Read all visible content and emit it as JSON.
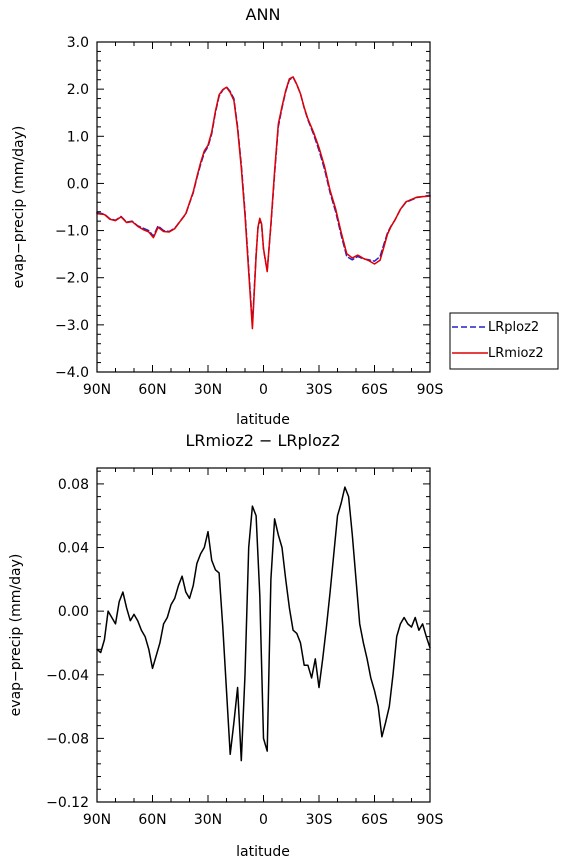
{
  "chart_data": [
    {
      "type": "line",
      "title": "ANN",
      "xlabel": "latitude",
      "ylabel": "evap−precip (mm/day)",
      "x_ticks": [
        {
          "value": 90,
          "label": "90N"
        },
        {
          "value": 60,
          "label": "60N"
        },
        {
          "value": 30,
          "label": "30N"
        },
        {
          "value": 0,
          "label": "0"
        },
        {
          "value": -30,
          "label": "30S"
        },
        {
          "value": -60,
          "label": "60S"
        },
        {
          "value": -90,
          "label": "90S"
        }
      ],
      "xlim": [
        90,
        -90
      ],
      "ylim": [
        -4.0,
        3.0
      ],
      "y_ticks": [
        {
          "value": 3.0,
          "label": "3.0"
        },
        {
          "value": 2.0,
          "label": "2.0"
        },
        {
          "value": 1.0,
          "label": "1.0"
        },
        {
          "value": 0.0,
          "label": "0.0"
        },
        {
          "value": -1.0,
          "label": "−1.0"
        },
        {
          "value": -2.0,
          "label": "−2.0"
        },
        {
          "value": -3.0,
          "label": "−3.0"
        },
        {
          "value": -4.0,
          "label": "−4.0"
        }
      ],
      "legend_position": "right",
      "series": [
        {
          "name": "LRploz2",
          "color": "#2222cc",
          "dash": "dashed",
          "x": [
            90,
            86,
            83,
            80,
            77,
            74,
            71,
            68,
            65,
            62,
            59.5,
            57,
            54,
            51,
            48,
            45,
            42,
            40,
            38,
            36,
            34,
            32,
            30,
            28,
            26,
            24,
            22,
            20,
            18,
            16,
            14,
            12,
            10,
            8,
            6,
            4,
            3,
            2,
            1,
            0,
            -2,
            -4,
            -6,
            -8,
            -10,
            -12,
            -14,
            -16,
            -18,
            -20,
            -22,
            -24,
            -27,
            -30,
            -33,
            -36,
            -39,
            -42,
            -45,
            -48,
            -51,
            -54,
            -57,
            -60,
            -63,
            -65,
            -67,
            -69,
            -71,
            -74,
            -77,
            -80,
            -83,
            -86,
            -90
          ],
          "y": [
            -0.62,
            -0.65,
            -0.75,
            -0.78,
            -0.7,
            -0.82,
            -0.8,
            -0.9,
            -0.95,
            -1.0,
            -1.12,
            -0.9,
            -1.0,
            -1.02,
            -0.95,
            -0.8,
            -0.65,
            -0.42,
            -0.2,
            0.12,
            0.4,
            0.65,
            0.78,
            1.05,
            1.5,
            1.85,
            1.98,
            2.05,
            1.95,
            1.8,
            1.2,
            0.4,
            -0.6,
            -1.8,
            -3.0,
            -1.5,
            -0.95,
            -0.78,
            -0.9,
            -1.4,
            -1.85,
            -0.9,
            0.2,
            1.2,
            1.6,
            1.95,
            2.2,
            2.25,
            2.1,
            1.9,
            1.6,
            1.35,
            1.05,
            0.7,
            0.3,
            -0.2,
            -0.6,
            -1.1,
            -1.55,
            -1.62,
            -1.55,
            -1.6,
            -1.62,
            -1.65,
            -1.55,
            -1.3,
            -1.05,
            -0.9,
            -0.78,
            -0.55,
            -0.4,
            -0.35,
            -0.3,
            -0.28,
            -0.25
          ]
        },
        {
          "name": "LRmioz2",
          "color": "#e00000",
          "dash": "solid",
          "x": [
            90,
            86,
            83,
            80,
            77,
            74,
            71,
            68,
            65,
            62,
            59.5,
            57,
            54,
            51,
            48,
            45,
            42,
            40,
            38,
            36,
            34,
            32,
            30,
            28,
            26,
            24,
            22,
            20,
            18,
            16,
            14,
            12,
            10,
            8,
            6,
            4,
            3,
            2,
            1,
            0,
            -2,
            -4,
            -6,
            -8,
            -10,
            -12,
            -14,
            -16,
            -18,
            -20,
            -22,
            -24,
            -27,
            -30,
            -33,
            -36,
            -39,
            -42,
            -45,
            -48,
            -51,
            -54,
            -57,
            -60,
            -63,
            -65,
            -67,
            -69,
            -71,
            -74,
            -77,
            -80,
            -83,
            -86,
            -90
          ],
          "y": [
            -0.64,
            -0.66,
            -0.76,
            -0.79,
            -0.71,
            -0.83,
            -0.81,
            -0.91,
            -0.98,
            -1.03,
            -1.15,
            -0.93,
            -1.02,
            -1.03,
            -0.96,
            -0.8,
            -0.64,
            -0.41,
            -0.18,
            0.14,
            0.44,
            0.69,
            0.81,
            1.09,
            1.53,
            1.88,
            1.99,
            2.04,
            1.93,
            1.76,
            1.15,
            0.33,
            -0.68,
            -1.88,
            -3.08,
            -1.55,
            -0.93,
            -0.74,
            -0.86,
            -1.38,
            -1.87,
            -0.86,
            0.26,
            1.26,
            1.63,
            1.97,
            2.22,
            2.26,
            2.1,
            1.9,
            1.61,
            1.37,
            1.09,
            0.76,
            0.36,
            -0.15,
            -0.54,
            -1.04,
            -1.49,
            -1.58,
            -1.52,
            -1.59,
            -1.64,
            -1.71,
            -1.63,
            -1.36,
            -1.08,
            -0.91,
            -0.78,
            -0.55,
            -0.39,
            -0.34,
            -0.29,
            -0.28,
            -0.27
          ]
        }
      ]
    },
    {
      "type": "line",
      "title": "LRmioz2 − LRploz2",
      "xlabel": "latitude",
      "ylabel": "evap−precip (mm/day)",
      "x_ticks": [
        {
          "value": 90,
          "label": "90N"
        },
        {
          "value": 60,
          "label": "60N"
        },
        {
          "value": 30,
          "label": "30N"
        },
        {
          "value": 0,
          "label": "0"
        },
        {
          "value": -30,
          "label": "30S"
        },
        {
          "value": -60,
          "label": "60S"
        },
        {
          "value": -90,
          "label": "90S"
        }
      ],
      "xlim": [
        90,
        -90
      ],
      "ylim": [
        -0.12,
        0.09
      ],
      "y_ticks": [
        {
          "value": 0.08,
          "label": "0.08"
        },
        {
          "value": 0.04,
          "label": "0.04"
        },
        {
          "value": 0.0,
          "label": "0.00"
        },
        {
          "value": -0.04,
          "label": "−0.04"
        },
        {
          "value": -0.08,
          "label": "−0.08"
        },
        {
          "value": -0.12,
          "label": "−0.12"
        }
      ],
      "series": [
        {
          "color": "#000000",
          "dash": "solid",
          "x": [
            90,
            88,
            86,
            84,
            82,
            80,
            78,
            76,
            74,
            72,
            70,
            68,
            66,
            64,
            62,
            60,
            58,
            56,
            54,
            52,
            50,
            48,
            46,
            44,
            42,
            40,
            38,
            36,
            34,
            32,
            30,
            28,
            26,
            24,
            22,
            20,
            18,
            16,
            14,
            12,
            10,
            8,
            6,
            4,
            2,
            0,
            -2,
            -4,
            -6,
            -8,
            -10,
            -12,
            -14,
            -16,
            -18,
            -20,
            -22,
            -24,
            -26,
            -28,
            -30,
            -32,
            -34,
            -36,
            -38,
            -40,
            -42,
            -44,
            -46,
            -48,
            -50,
            -52,
            -54,
            -56,
            -58,
            -60,
            -62,
            -64,
            -66,
            -68,
            -70,
            -72,
            -74,
            -76,
            -78,
            -80,
            -82,
            -84,
            -86,
            -88,
            -90
          ],
          "y": [
            -0.024,
            -0.026,
            -0.018,
            0.0,
            -0.004,
            -0.008,
            0.006,
            0.012,
            0.002,
            -0.006,
            -0.002,
            -0.006,
            -0.012,
            -0.016,
            -0.024,
            -0.036,
            -0.028,
            -0.02,
            -0.008,
            -0.004,
            0.004,
            0.008,
            0.016,
            0.022,
            0.012,
            0.008,
            0.016,
            0.03,
            0.036,
            0.04,
            0.05,
            0.032,
            0.026,
            0.024,
            -0.01,
            -0.05,
            -0.09,
            -0.07,
            -0.048,
            -0.094,
            -0.04,
            0.04,
            0.066,
            0.06,
            0.01,
            -0.08,
            -0.088,
            0.02,
            0.058,
            0.048,
            0.04,
            0.02,
            0.002,
            -0.012,
            -0.014,
            -0.02,
            -0.034,
            -0.034,
            -0.042,
            -0.03,
            -0.048,
            -0.03,
            -0.01,
            0.012,
            0.036,
            0.06,
            0.068,
            0.078,
            0.072,
            0.048,
            0.02,
            -0.008,
            -0.02,
            -0.03,
            -0.042,
            -0.05,
            -0.06,
            -0.079,
            -0.07,
            -0.06,
            -0.04,
            -0.016,
            -0.008,
            -0.004,
            -0.008,
            -0.01,
            -0.004,
            -0.012,
            -0.008,
            -0.016,
            -0.023
          ]
        }
      ]
    }
  ],
  "legend": [
    {
      "label": "LRploz2",
      "color": "#2222cc",
      "dash": "dashed"
    },
    {
      "label": "LRmioz2",
      "color": "#e00000",
      "dash": "solid"
    }
  ]
}
